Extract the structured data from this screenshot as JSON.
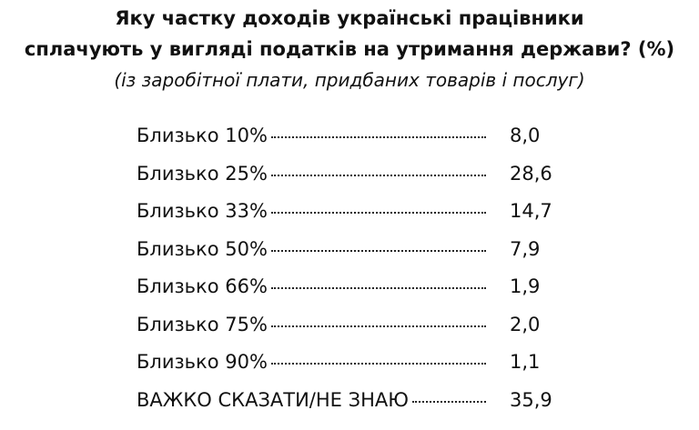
{
  "header": {
    "title": [
      "Яку частку доходів українські працівники",
      "сплачують у вигляді податків на утримання держави? (%)"
    ],
    "subtitle": "(із заробітної плати, придбаних товарів і послуг)"
  },
  "table": {
    "rows": [
      [
        "Близько 10%",
        "8,0"
      ],
      [
        "Близько 25%",
        "28,6"
      ],
      [
        "Близько 33%",
        "14,7"
      ],
      [
        "Близько 50%",
        "7,9"
      ],
      [
        "Близько 66%",
        "1,9"
      ],
      [
        "Близько 75%",
        "2,0"
      ],
      [
        "Близько 90%",
        "1,1"
      ],
      [
        "ВАЖКО СКАЗАТИ/НЕ ЗНАЮ",
        "35,9"
      ]
    ]
  }
}
